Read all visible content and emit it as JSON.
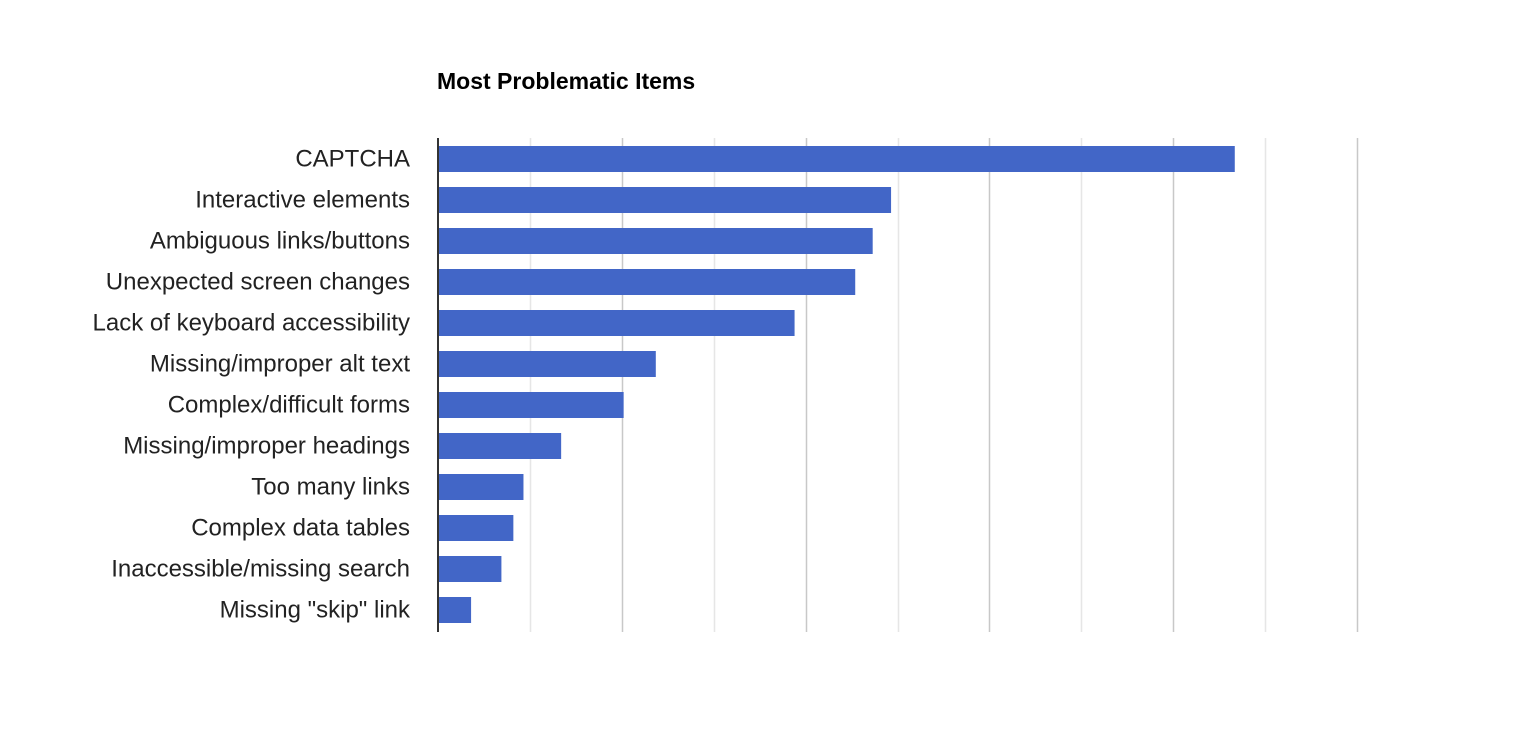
{
  "chart_data": {
    "type": "bar",
    "orientation": "horizontal",
    "title": "Most Problematic Items",
    "xlabel": "",
    "ylabel": "",
    "categories": [
      "CAPTCHA",
      "Interactive elements",
      "Ambiguous links/buttons",
      "Unexpected screen changes",
      "Lack of keyboard accessibility",
      "Missing/improper alt text",
      "Complex/difficult forms",
      "Missing/improper headings",
      "Too many links",
      "Complex data tables",
      "Inaccessible/missing search",
      "Missing \"skip\" link"
    ],
    "values": [
      86.7,
      49.3,
      47.3,
      45.4,
      38.8,
      23.7,
      20.2,
      13.4,
      9.3,
      8.2,
      6.9,
      3.6
    ],
    "xlim": [
      0,
      110
    ],
    "x_gridlines": [
      10,
      20,
      30,
      40,
      50,
      60,
      70,
      80,
      90,
      100
    ],
    "major_gridlines": [
      20,
      40,
      60,
      80,
      100
    ],
    "tick_labels_visible": false,
    "grid": true,
    "legend": "none",
    "bar_color": "#4266C7",
    "major_grid_color": "#C8C8C8",
    "minor_grid_color": "#E6E6E6",
    "axis_color": "#333333"
  }
}
